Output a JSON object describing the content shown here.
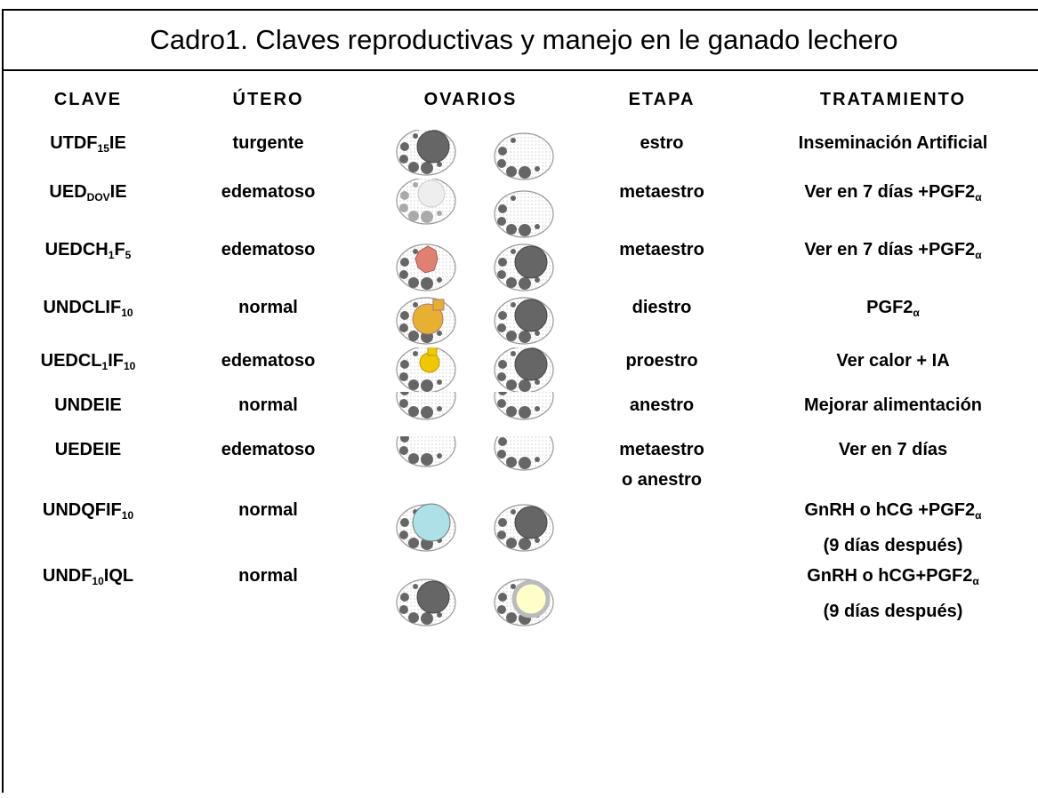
{
  "title": "Cadro1. Claves reproductivas y manejo en le ganado lechero",
  "header": [
    "CLAVE",
    "ÚTERO",
    "OVARIOS",
    "ETAPA",
    "TRATAMIENTO"
  ],
  "rows": [
    {
      "clave": [
        {
          "text": "UTDF"
        },
        {
          "sub": "15"
        },
        {
          "text": "IE"
        }
      ],
      "utero": "turgente",
      "etapa": [
        "estro"
      ],
      "tratamiento": [
        [
          {
            "text": "Inseminación Artificial"
          }
        ]
      ]
    },
    {
      "clave": [
        {
          "text": "UED"
        },
        {
          "sub": "DOV"
        },
        {
          "text": "IE"
        }
      ],
      "utero": "edematoso",
      "etapa": [
        "metaestro"
      ],
      "tratamiento": [
        [
          {
            "text": "Ver en 7 días +PGF2"
          },
          {
            "sub": "α"
          }
        ]
      ]
    },
    {
      "clave": [
        {
          "text": "UEDCH"
        },
        {
          "sub": "1"
        },
        {
          "text": "F"
        },
        {
          "sub": "5"
        }
      ],
      "utero": "edematoso",
      "etapa": [
        "metaestro"
      ],
      "tratamiento": [
        [
          {
            "text": "Ver en 7 días +PGF2"
          },
          {
            "sub": "α"
          }
        ]
      ]
    },
    {
      "clave": [
        {
          "text": "UNDCLIF"
        },
        {
          "sub": "10"
        }
      ],
      "utero": "normal",
      "etapa": [
        "diestro"
      ],
      "tratamiento": [
        [
          {
            "text": "PGF2"
          },
          {
            "sub": "α"
          }
        ]
      ]
    },
    {
      "clave": [
        {
          "text": "UEDCL"
        },
        {
          "sub": "1"
        },
        {
          "text": "IF"
        },
        {
          "sub": "10"
        }
      ],
      "utero": "edematoso",
      "etapa": [
        "proestro"
      ],
      "tratamiento": [
        [
          {
            "text": "Ver calor + IA"
          }
        ]
      ]
    },
    {
      "clave": [
        {
          "text": "UNDEIE"
        }
      ],
      "utero": "normal",
      "etapa": [
        "anestro"
      ],
      "tratamiento": [
        [
          {
            "text": "Mejorar alimentación"
          }
        ]
      ]
    },
    {
      "clave": [
        {
          "text": "UEDEIE"
        }
      ],
      "utero": "edematoso",
      "etapa": [
        "metaestro",
        "o anestro"
      ],
      "tratamiento": [
        [
          {
            "text": "Ver en 7 días"
          }
        ]
      ]
    },
    {
      "clave": [
        {
          "text": "UNDQFIF"
        },
        {
          "sub": "10"
        }
      ],
      "utero": "normal",
      "etapa": [],
      "tratamiento": [
        [
          {
            "text": "GnRH o hCG +PGF2"
          },
          {
            "sub": "α"
          }
        ],
        [
          {
            "text": "(9 días después)"
          }
        ]
      ]
    },
    {
      "clave": [
        {
          "text": "UNDF"
        },
        {
          "sub": "10"
        },
        {
          "text": "IQL"
        }
      ],
      "utero": "normal",
      "etapa": [],
      "tratamiento": [
        [
          {
            "text": "GnRH o hCG+PGF2"
          },
          {
            "sub": "α"
          }
        ],
        [
          {
            "text": "(9 días después)"
          }
        ]
      ]
    }
  ]
}
